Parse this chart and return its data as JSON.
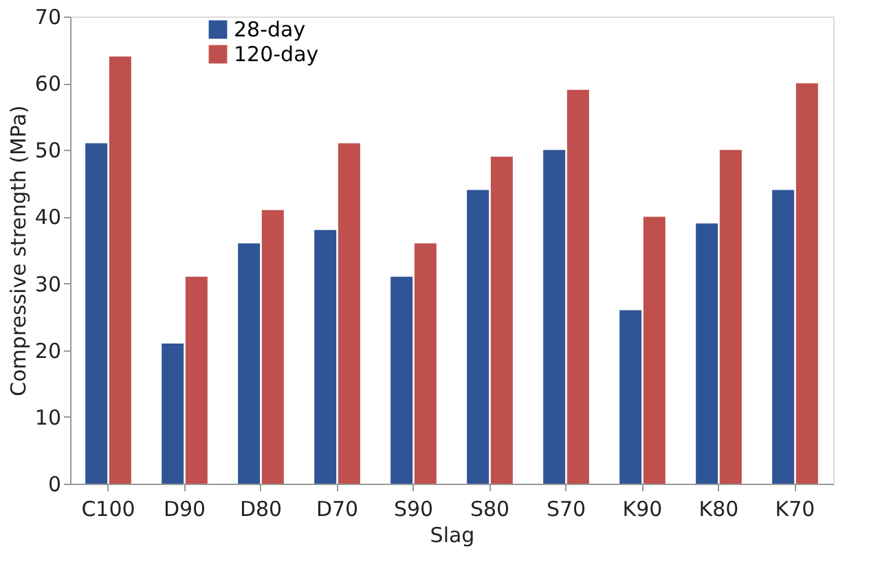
{
  "chart_data": {
    "type": "bar",
    "categories": [
      "C100",
      "D90",
      "D80",
      "D70",
      "S90",
      "S80",
      "S70",
      "K90",
      "K80",
      "K70"
    ],
    "series": [
      {
        "name": "28-day",
        "color": "#2f5597",
        "values": [
          51,
          21,
          36,
          38,
          31,
          44,
          50,
          26,
          39,
          44
        ]
      },
      {
        "name": "120-day",
        "color": "#c0504d",
        "values": [
          64,
          31,
          41,
          51,
          36,
          49,
          59,
          40,
          50,
          60
        ]
      }
    ],
    "xlabel": "Slag",
    "ylabel": "Compressive strength (MPa)",
    "ylim": [
      0,
      70
    ],
    "yticks": [
      0,
      10,
      20,
      30,
      40,
      50,
      60,
      70
    ],
    "grid": false,
    "legend": "top left"
  }
}
